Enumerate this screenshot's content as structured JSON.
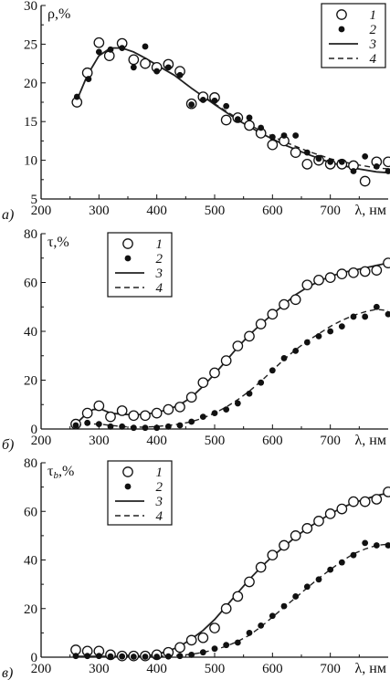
{
  "chart_data": [
    {
      "type": "scatter",
      "panel_label": "а)",
      "ylabel": "ρ,%",
      "xlabel": "λ, нм",
      "xlim": [
        200,
        800
      ],
      "ylim": [
        5,
        30
      ],
      "xticks": [
        200,
        300,
        400,
        500,
        600,
        700
      ],
      "yticks": [
        5,
        10,
        15,
        20,
        25,
        30
      ],
      "legend": {
        "placement": "top-right",
        "entries": [
          "1",
          "2",
          "3",
          "4"
        ]
      },
      "series": [
        {
          "name": "1",
          "marker": "open-circle",
          "x": [
            262,
            280,
            300,
            318,
            340,
            360,
            380,
            400,
            420,
            440,
            460,
            480,
            500,
            520,
            540,
            560,
            580,
            600,
            620,
            640,
            660,
            680,
            700,
            720,
            740,
            760,
            780,
            800
          ],
          "y": [
            17.5,
            21.3,
            25.2,
            23.5,
            25.1,
            23,
            22.5,
            22,
            22.4,
            21.5,
            17.3,
            18.2,
            18.1,
            15.2,
            15.5,
            14.5,
            13.5,
            12,
            12.5,
            11,
            9.5,
            10,
            9.5,
            9.5,
            9.3,
            7.3,
            9.8,
            9.8
          ]
        },
        {
          "name": "2",
          "marker": "filled-circle",
          "x": [
            262,
            282,
            300,
            320,
            340,
            360,
            380,
            400,
            420,
            440,
            460,
            480,
            500,
            520,
            540,
            560,
            580,
            600,
            620,
            640,
            660,
            680,
            700,
            720,
            740,
            760,
            780,
            800
          ],
          "y": [
            18.2,
            20.5,
            24,
            24.3,
            24.5,
            22,
            24.7,
            21.5,
            22,
            21,
            17.2,
            17.8,
            17.7,
            17,
            15.3,
            15.5,
            14.2,
            13,
            13.2,
            13.2,
            11,
            10.2,
            9.8,
            9.8,
            8.6,
            10.5,
            9.2,
            8.6
          ]
        },
        {
          "name": "3",
          "line": "solid",
          "x": [
            262,
            280,
            300,
            320,
            340,
            360,
            380,
            400,
            430,
            460,
            500,
            540,
            580,
            620,
            660,
            700,
            740,
            780,
            800
          ],
          "y": [
            17.8,
            21,
            23.5,
            24.5,
            24.5,
            24,
            23.2,
            22.3,
            21,
            19.3,
            17.2,
            15.2,
            13.5,
            12,
            10.8,
            9.7,
            9,
            8.5,
            8.4
          ]
        },
        {
          "name": "4",
          "line": "dashed",
          "x": [
            262,
            280,
            300,
            320,
            340,
            360,
            380,
            400,
            430,
            460,
            500,
            540,
            580,
            620,
            660,
            700,
            740,
            780,
            800
          ],
          "y": [
            17.8,
            21,
            23.5,
            24.5,
            24.5,
            24,
            23.2,
            22.3,
            21,
            19.3,
            17.3,
            15.4,
            13.8,
            12.4,
            11.2,
            10.2,
            9.5,
            9,
            8.9
          ]
        }
      ]
    },
    {
      "type": "scatter",
      "panel_label": "б)",
      "ylabel": "τ,%",
      "xlabel": "λ, нм",
      "xlim": [
        200,
        800
      ],
      "ylim": [
        0,
        80
      ],
      "xticks": [
        200,
        300,
        400,
        500,
        600,
        700
      ],
      "yticks": [
        0,
        20,
        40,
        60,
        80
      ],
      "legend": {
        "placement": "top-center",
        "entries": [
          "1",
          "2",
          "3",
          "4"
        ]
      },
      "series": [
        {
          "name": "1",
          "marker": "open-circle",
          "x": [
            260,
            280,
            300,
            320,
            340,
            360,
            380,
            400,
            420,
            440,
            460,
            480,
            500,
            520,
            540,
            560,
            580,
            600,
            620,
            640,
            660,
            680,
            700,
            720,
            740,
            760,
            780,
            800
          ],
          "y": [
            2,
            6.5,
            9.5,
            5,
            7.5,
            5.5,
            5.5,
            6.5,
            8,
            9,
            13,
            19,
            23,
            28,
            34,
            38,
            43,
            47,
            51,
            53,
            59,
            61,
            62,
            63.5,
            64,
            64.5,
            65,
            68
          ]
        },
        {
          "name": "2",
          "marker": "filled-circle",
          "x": [
            260,
            280,
            300,
            320,
            340,
            360,
            380,
            400,
            420,
            440,
            460,
            480,
            500,
            520,
            540,
            560,
            580,
            600,
            620,
            640,
            660,
            680,
            700,
            720,
            740,
            760,
            780,
            800
          ],
          "y": [
            1.5,
            2.5,
            2,
            1,
            1,
            0.5,
            0.5,
            0.5,
            1,
            1.5,
            3,
            5,
            6.5,
            8,
            10.5,
            14.5,
            19,
            24,
            29,
            32,
            35.5,
            38,
            40,
            42,
            46,
            46,
            50,
            47
          ]
        },
        {
          "name": "3",
          "line": "solid",
          "x": [
            260,
            275,
            290,
            305,
            320,
            340,
            360,
            380,
            400,
            420,
            440,
            460,
            480,
            500,
            520,
            540,
            560,
            580,
            600,
            620,
            640,
            660,
            680,
            700,
            720,
            740,
            760,
            780,
            800
          ],
          "y": [
            2,
            5.5,
            8,
            8,
            6.5,
            6,
            5.8,
            6,
            6.8,
            8,
            10,
            13,
            17.5,
            22.5,
            28,
            33.5,
            38.5,
            43,
            47,
            51,
            55,
            58,
            60.5,
            62.5,
            64,
            65,
            66,
            67,
            68
          ]
        },
        {
          "name": "4",
          "line": "dashed",
          "x": [
            260,
            280,
            300,
            320,
            340,
            360,
            380,
            400,
            420,
            440,
            460,
            480,
            500,
            520,
            540,
            560,
            580,
            600,
            620,
            640,
            660,
            680,
            700,
            720,
            740,
            760,
            780,
            800
          ],
          "y": [
            1.5,
            2,
            2,
            1.5,
            1,
            0.8,
            0.8,
            1,
            1.5,
            2,
            3,
            4.5,
            6.5,
            9,
            12,
            15.5,
            19.5,
            24,
            28.5,
            32.5,
            36,
            39,
            42,
            44.5,
            46.5,
            48,
            49,
            48.5
          ]
        }
      ]
    },
    {
      "type": "scatter",
      "panel_label": "в)",
      "ylabel": "τb,%",
      "xlabel": "λ, нм",
      "xlim": [
        200,
        800
      ],
      "ylim": [
        0,
        80
      ],
      "xticks": [
        200,
        300,
        400,
        500,
        600,
        700
      ],
      "yticks": [
        0,
        20,
        40,
        60,
        80
      ],
      "legend": {
        "placement": "top-center",
        "entries": [
          "1",
          "2",
          "3",
          "4"
        ]
      },
      "series": [
        {
          "name": "1",
          "marker": "open-circle",
          "x": [
            260,
            280,
            300,
            320,
            340,
            360,
            380,
            400,
            420,
            440,
            460,
            480,
            500,
            520,
            540,
            560,
            580,
            600,
            620,
            640,
            660,
            680,
            700,
            720,
            740,
            760,
            780,
            800
          ],
          "y": [
            3,
            2.5,
            2.5,
            1,
            0.5,
            0.5,
            0.5,
            1,
            2,
            4,
            7,
            8,
            12,
            20,
            25,
            31,
            37,
            42,
            46,
            50,
            53,
            56,
            59,
            61,
            64,
            64,
            65,
            68
          ]
        },
        {
          "name": "2",
          "marker": "filled-circle",
          "x": [
            260,
            280,
            300,
            320,
            340,
            360,
            380,
            400,
            420,
            440,
            460,
            480,
            500,
            520,
            540,
            560,
            580,
            600,
            620,
            640,
            660,
            680,
            700,
            720,
            740,
            760,
            780,
            800
          ],
          "y": [
            0.5,
            0.5,
            0.5,
            0.3,
            0.3,
            0.2,
            0.2,
            0.2,
            0.3,
            0.5,
            1,
            2,
            3.5,
            5,
            6,
            10,
            13,
            17,
            21,
            25,
            29,
            32,
            36,
            39,
            42,
            47,
            46,
            46
          ]
        },
        {
          "name": "3",
          "line": "solid",
          "x": [
            260,
            300,
            340,
            380,
            400,
            420,
            440,
            460,
            480,
            500,
            520,
            540,
            560,
            580,
            600,
            620,
            640,
            660,
            680,
            700,
            720,
            740,
            760,
            780,
            800
          ],
          "y": [
            0.3,
            0.3,
            0.3,
            0.5,
            1.2,
            2.5,
            4.5,
            7.5,
            11,
            15.5,
            21,
            26.5,
            32,
            37,
            41.5,
            45.5,
            49.5,
            53,
            56,
            59,
            61.5,
            63.5,
            65,
            66.5,
            67.5
          ]
        },
        {
          "name": "4",
          "line": "dashed",
          "x": [
            260,
            300,
            340,
            380,
            400,
            420,
            440,
            460,
            480,
            500,
            520,
            540,
            560,
            580,
            600,
            620,
            640,
            660,
            680,
            700,
            720,
            740,
            760,
            780,
            800
          ],
          "y": [
            0.1,
            0.1,
            0.1,
            0.2,
            0.3,
            0.5,
            0.8,
            1.2,
            2,
            3,
            4.5,
            6.5,
            9,
            12.5,
            16.5,
            20.5,
            24.5,
            28.5,
            32.5,
            36,
            39.5,
            42.5,
            44.5,
            46,
            46.5
          ]
        }
      ]
    }
  ]
}
